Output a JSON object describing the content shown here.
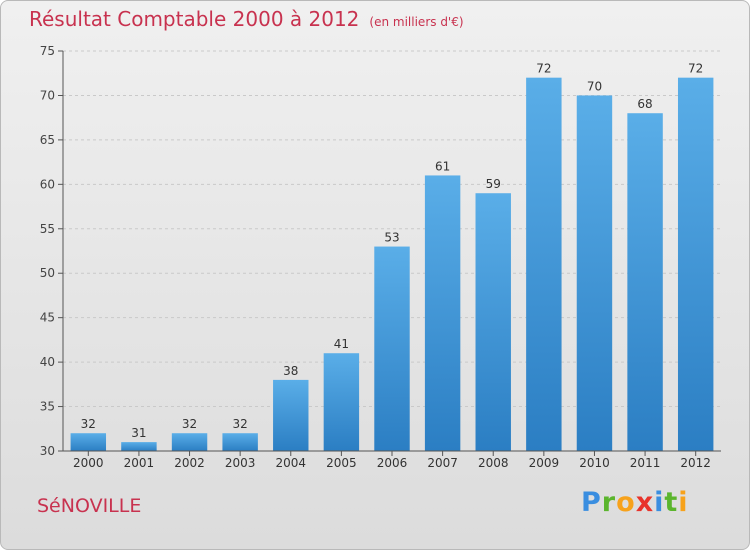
{
  "header": {
    "title": "Résultat Comptable 2000 à 2012",
    "unit": "(en milliers d'€)"
  },
  "footer": {
    "commune": "SéNOVILLE",
    "brand_letters": [
      {
        "char": "P",
        "color": "#3a8ee0"
      },
      {
        "char": "r",
        "color": "#5bb52d"
      },
      {
        "char": "o",
        "color": "#f7a21b"
      },
      {
        "char": "x",
        "color": "#e8332b"
      },
      {
        "char": "i",
        "color": "#3a8ee0"
      },
      {
        "char": "t",
        "color": "#5bb52d"
      },
      {
        "char": "i",
        "color": "#f7a21b"
      }
    ]
  },
  "chart_data": {
    "type": "bar",
    "categories": [
      "2000",
      "2001",
      "2002",
      "2003",
      "2004",
      "2005",
      "2006",
      "2007",
      "2008",
      "2009",
      "2010",
      "2011",
      "2012"
    ],
    "values": [
      32,
      31,
      32,
      32,
      38,
      41,
      53,
      61,
      59,
      72,
      70,
      68,
      72
    ],
    "ylim": [
      30,
      75
    ],
    "yticks": [
      30,
      35,
      40,
      45,
      50,
      55,
      60,
      65,
      70,
      75
    ],
    "grid": true,
    "bar_color_top": "#5aaee8",
    "bar_color_bottom": "#2b7ec3"
  }
}
